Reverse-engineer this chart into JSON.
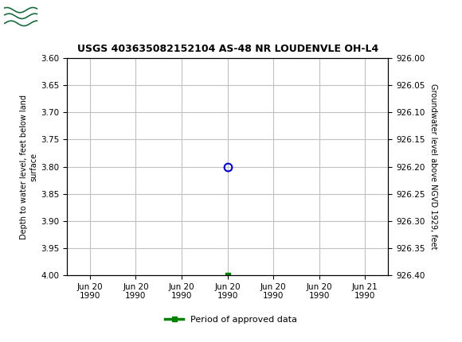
{
  "title": "USGS 403635082152104 AS-48 NR LOUDENVLE OH-L4",
  "header_color": "#1a6b3c",
  "header_text": "USGS",
  "ylabel_left": "Depth to water level, feet below land\nsurface",
  "ylabel_right": "Groundwater level above NGVD 1929, feet",
  "ylim_left": [
    3.6,
    4.0
  ],
  "ylim_right_top": 926.4,
  "ylim_right_bottom": 926.0,
  "yticks_left": [
    3.6,
    3.65,
    3.7,
    3.75,
    3.8,
    3.85,
    3.9,
    3.95,
    4.0
  ],
  "yticks_right": [
    926.4,
    926.35,
    926.3,
    926.25,
    926.2,
    926.15,
    926.1,
    926.05,
    926.0
  ],
  "yticks_right_labels": [
    "926.40",
    "926.35",
    "926.30",
    "926.25",
    "926.20",
    "926.15",
    "926.10",
    "926.05",
    "926.00"
  ],
  "x_ticks_labels": [
    "Jun 20\n1990",
    "Jun 20\n1990",
    "Jun 20\n1990",
    "Jun 20\n1990",
    "Jun 20\n1990",
    "Jun 20\n1990",
    "Jun 21\n1990"
  ],
  "x_ticks_pos": [
    0,
    1,
    2,
    3,
    4,
    5,
    6
  ],
  "data_point_x": 3,
  "data_point_y": 3.8,
  "data_point_color": "#0000cc",
  "data_square_x": 3,
  "data_square_y": 4.0,
  "data_square_color": "#008000",
  "grid_color": "#c0c0c0",
  "bg_color": "#ffffff",
  "plot_bg_color": "#ffffff",
  "legend_label": "Period of approved data",
  "legend_color": "#008000",
  "title_fontsize": 9
}
